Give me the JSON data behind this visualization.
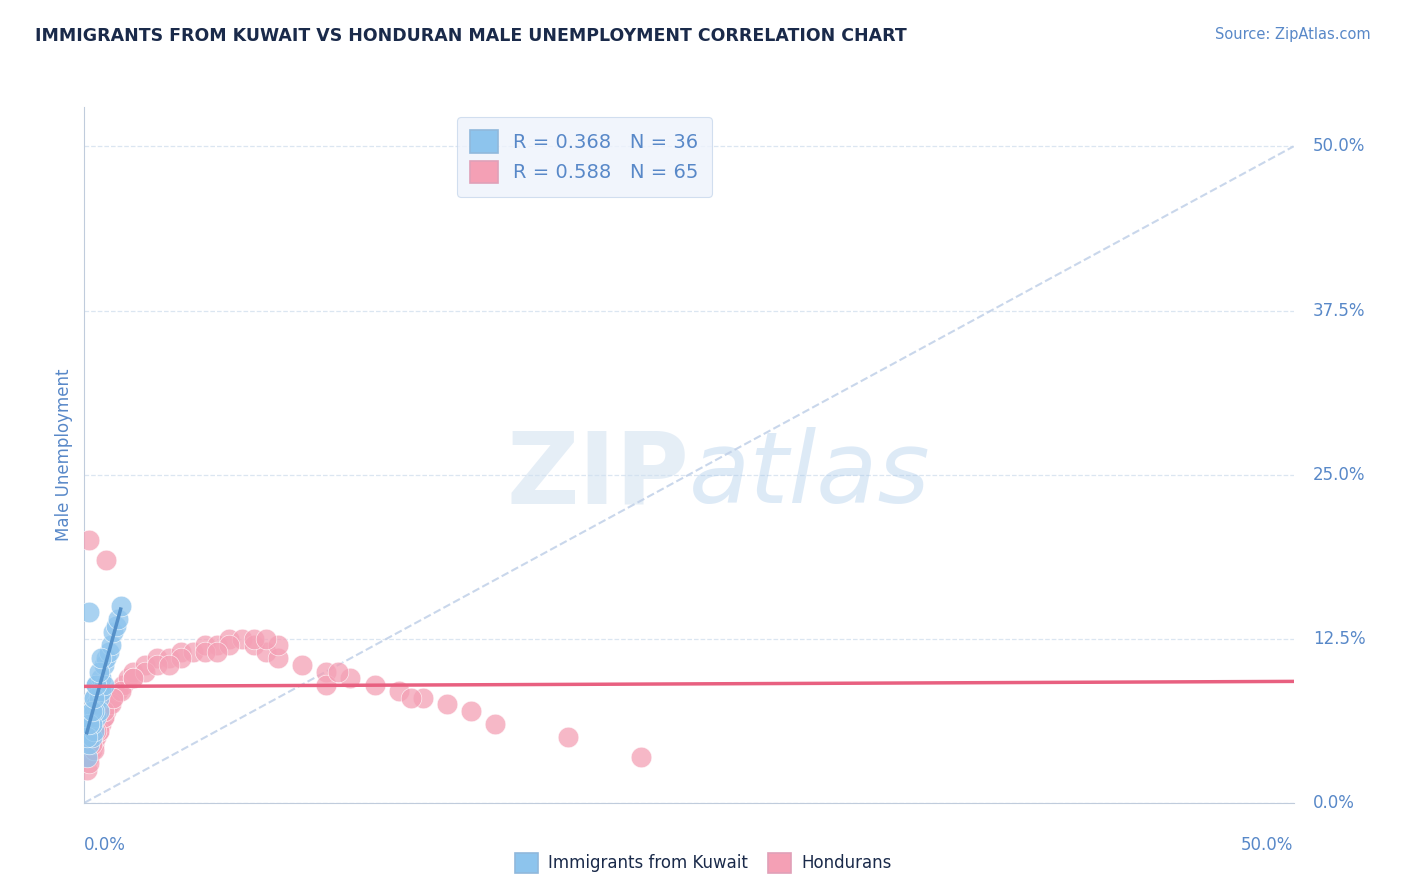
{
  "title": "IMMIGRANTS FROM KUWAIT VS HONDURAN MALE UNEMPLOYMENT CORRELATION CHART",
  "source_text": "Source: ZipAtlas.com",
  "ylabel": "Male Unemployment",
  "ytick_values": [
    0.0,
    12.5,
    25.0,
    37.5,
    50.0
  ],
  "xlim": [
    0.0,
    50.0
  ],
  "ylim": [
    0.0,
    53.0
  ],
  "legend_r1": "R = 0.368   N = 36",
  "legend_r2": "R = 0.588   N = 65",
  "kuwait_color": "#8DC4ED",
  "honduran_color": "#F4A0B5",
  "kuwait_line_color": "#5590C8",
  "honduran_line_color": "#E86080",
  "diag_line_color": "#C0D0E8",
  "background_color": "#ffffff",
  "grid_color": "#D8E4F0",
  "legend_box_color": "#EEF3FC",
  "watermark_color": "#D0E0F0",
  "kuwait_x": [
    0.3,
    0.4,
    0.5,
    0.6,
    0.7,
    0.8,
    0.9,
    1.0,
    1.1,
    1.2,
    1.3,
    1.4,
    1.5,
    0.2,
    0.3,
    0.4,
    0.5,
    0.6,
    0.1,
    0.2,
    0.3,
    0.4,
    0.5,
    0.6,
    0.7,
    0.8,
    0.2,
    0.3,
    0.4,
    0.1,
    0.2,
    0.3,
    0.4,
    0.5,
    0.6,
    0.7
  ],
  "kuwait_y": [
    7.0,
    8.0,
    9.0,
    8.5,
    9.5,
    10.5,
    11.0,
    11.5,
    12.0,
    13.0,
    13.5,
    14.0,
    15.0,
    5.5,
    6.0,
    6.5,
    7.5,
    8.0,
    3.5,
    4.5,
    5.0,
    5.5,
    6.5,
    7.0,
    8.5,
    9.0,
    14.5,
    6.0,
    7.0,
    5.0,
    6.0,
    7.0,
    8.0,
    9.0,
    10.0,
    11.0
  ],
  "honduran_x": [
    0.1,
    0.2,
    0.3,
    0.4,
    0.5,
    0.6,
    0.7,
    0.8,
    0.9,
    1.0,
    1.2,
    1.4,
    1.6,
    1.8,
    2.0,
    2.5,
    3.0,
    3.5,
    4.0,
    4.5,
    5.0,
    5.5,
    6.0,
    6.5,
    7.0,
    7.5,
    8.0,
    9.0,
    10.0,
    11.0,
    12.0,
    13.0,
    14.0,
    15.0,
    16.0,
    0.2,
    0.4,
    0.6,
    0.8,
    1.1,
    1.5,
    2.0,
    2.5,
    3.0,
    4.0,
    5.0,
    6.0,
    7.0,
    8.0,
    10.0,
    0.3,
    0.5,
    0.8,
    1.2,
    2.0,
    3.5,
    5.5,
    7.5,
    10.5,
    13.5,
    17.0,
    20.0,
    23.0,
    0.2,
    0.9
  ],
  "honduran_y": [
    2.5,
    3.5,
    4.0,
    4.5,
    5.0,
    5.5,
    6.0,
    6.5,
    7.0,
    7.5,
    8.0,
    8.5,
    9.0,
    9.5,
    10.0,
    10.5,
    11.0,
    11.0,
    11.5,
    11.5,
    12.0,
    12.0,
    12.5,
    12.5,
    12.0,
    11.5,
    11.0,
    10.5,
    10.0,
    9.5,
    9.0,
    8.5,
    8.0,
    7.5,
    7.0,
    3.0,
    4.0,
    5.5,
    6.5,
    7.5,
    8.5,
    9.5,
    10.0,
    10.5,
    11.0,
    11.5,
    12.0,
    12.5,
    12.0,
    9.0,
    4.5,
    5.5,
    7.0,
    8.0,
    9.5,
    10.5,
    11.5,
    12.5,
    10.0,
    8.0,
    6.0,
    5.0,
    3.5,
    20.0,
    18.5
  ]
}
